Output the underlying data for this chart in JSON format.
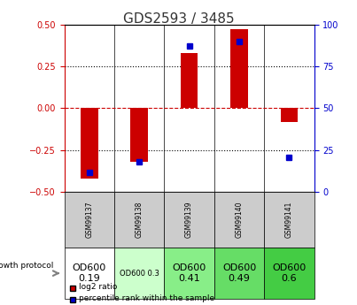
{
  "title": "GDS2593 / 3485",
  "samples": [
    "GSM99137",
    "GSM99138",
    "GSM99139",
    "GSM99140",
    "GSM99141"
  ],
  "log2_ratio": [
    -0.42,
    -0.32,
    0.33,
    0.47,
    -0.08
  ],
  "percentile_rank": [
    12,
    18,
    87,
    90,
    21
  ],
  "ylim_left": [
    -0.5,
    0.5
  ],
  "ylim_right": [
    0,
    100
  ],
  "yticks_left": [
    -0.5,
    -0.25,
    0,
    0.25,
    0.5
  ],
  "yticks_right": [
    0,
    25,
    50,
    75,
    100
  ],
  "bar_color": "#cc0000",
  "dot_color": "#0000cc",
  "zero_line_color": "#cc0000",
  "protocol_labels": [
    "OD600\n0.19",
    "OD600 0.3",
    "OD600\n0.41",
    "OD600\n0.49",
    "OD600\n0.6"
  ],
  "protocol_bg_colors": [
    "#ffffff",
    "#ccffcc",
    "#88ee88",
    "#66dd66",
    "#44cc44"
  ],
  "protocol_font_sizes": [
    8,
    6,
    8,
    8,
    8
  ],
  "growth_protocol_label": "growth protocol",
  "legend_log2": "log2 ratio",
  "legend_pct": "percentile rank within the sample",
  "header_bg": "#cccccc",
  "title_color": "#333333"
}
